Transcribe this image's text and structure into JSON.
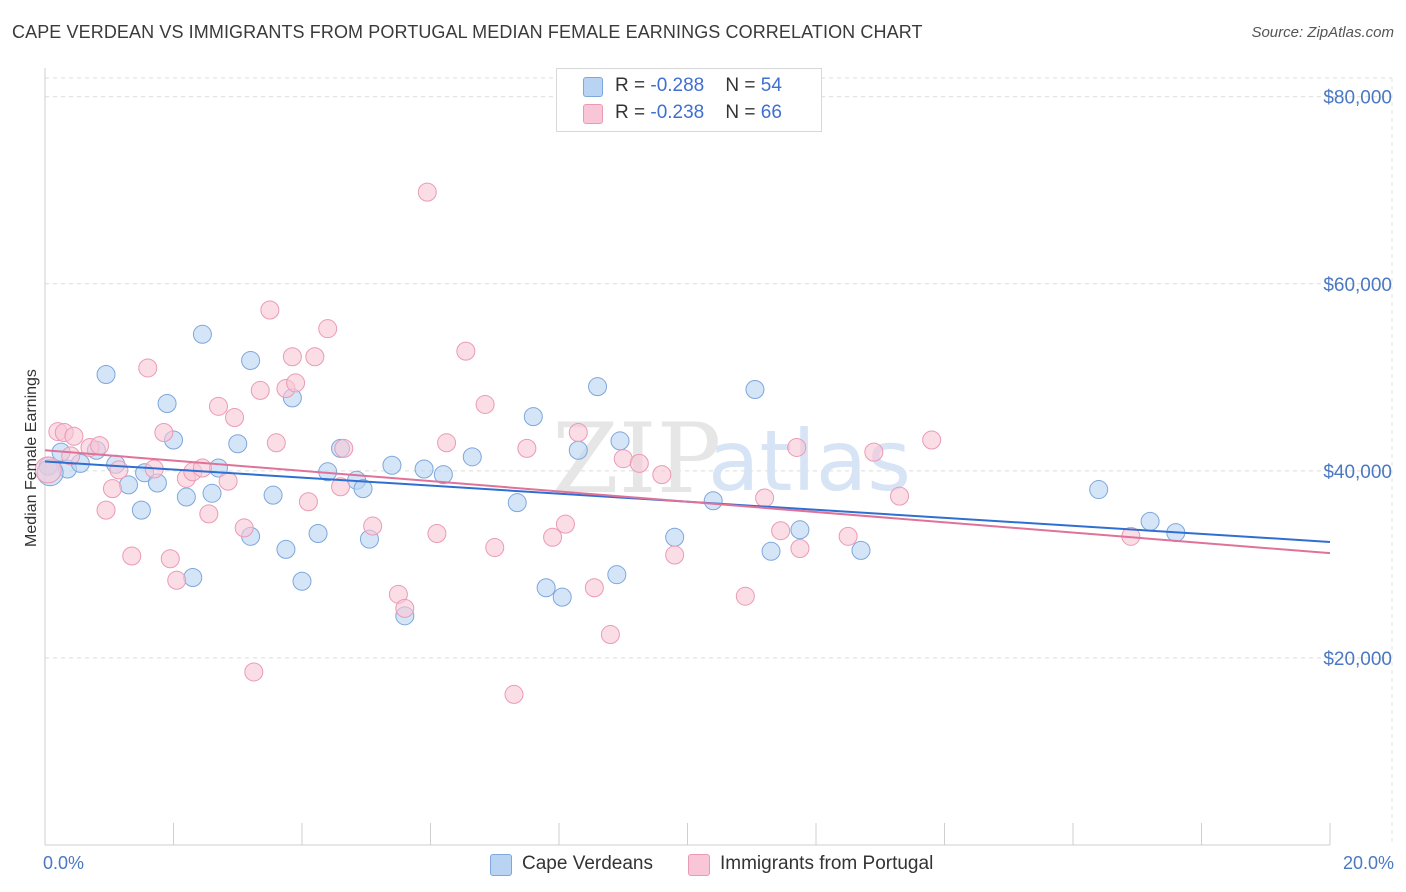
{
  "title": "CAPE VERDEAN VS IMMIGRANTS FROM PORTUGAL MEDIAN FEMALE EARNINGS CORRELATION CHART",
  "source": "Source: ZipAtlas.com",
  "watermark": {
    "zip": "ZIP",
    "atlas": "atlas"
  },
  "legend": [
    {
      "r_label": "R = ",
      "r_value": "-0.288",
      "n_label": "N = ",
      "n_value": "54"
    },
    {
      "r_label": "R = ",
      "r_value": "-0.238",
      "n_label": "N = ",
      "n_value": "66"
    }
  ],
  "colors": {
    "blue_fill": "#b9d3f3",
    "blue_stroke": "#7ea7dc",
    "blue_line": "#2f6fd1",
    "pink_fill": "#f8c6d6",
    "pink_stroke": "#eb9ab5",
    "pink_line": "#e0729a",
    "grid": "#dcdcdc",
    "axis_text": "#4a78c2"
  },
  "chart_data": {
    "type": "scatter",
    "title": "CAPE VERDEAN VS IMMIGRANTS FROM PORTUGAL MEDIAN FEMALE EARNINGS CORRELATION CHART",
    "ylabel": "Median Female Earnings",
    "xlabel": "",
    "xlim": [
      0,
      20
    ],
    "ylim": [
      0,
      82000
    ],
    "x_tick_labels": [
      "0.0%",
      "20.0%"
    ],
    "y_ticks": [
      {
        "value": 20000,
        "label": "$20,000"
      },
      {
        "value": 40000,
        "label": "$40,000"
      },
      {
        "value": 60000,
        "label": "$60,000"
      },
      {
        "value": 80000,
        "label": "$80,000"
      }
    ],
    "grid": true,
    "legend_position": "top-center",
    "series": [
      {
        "name": "Cape Verdeans",
        "trend": {
          "x": [
            0,
            20
          ],
          "y": [
            41000,
            32400
          ]
        },
        "points": [
          [
            0.05,
            40500
          ],
          [
            0.25,
            42000
          ],
          [
            0.35,
            40200
          ],
          [
            0.55,
            40800
          ],
          [
            0.8,
            42200
          ],
          [
            0.95,
            50300
          ],
          [
            1.1,
            40700
          ],
          [
            1.3,
            38500
          ],
          [
            1.5,
            35800
          ],
          [
            1.55,
            39800
          ],
          [
            1.75,
            38700
          ],
          [
            1.9,
            47200
          ],
          [
            2.0,
            43300
          ],
          [
            2.2,
            37200
          ],
          [
            2.3,
            28600
          ],
          [
            2.45,
            54600
          ],
          [
            2.6,
            37600
          ],
          [
            2.7,
            40300
          ],
          [
            3.0,
            42900
          ],
          [
            3.2,
            33000
          ],
          [
            3.2,
            51800
          ],
          [
            3.55,
            37400
          ],
          [
            3.75,
            31600
          ],
          [
            3.85,
            47800
          ],
          [
            4.0,
            28200
          ],
          [
            4.25,
            33300
          ],
          [
            4.4,
            39900
          ],
          [
            4.6,
            42400
          ],
          [
            4.85,
            39000
          ],
          [
            4.95,
            38100
          ],
          [
            5.05,
            32700
          ],
          [
            5.4,
            40600
          ],
          [
            5.6,
            24500
          ],
          [
            5.9,
            40200
          ],
          [
            6.2,
            39600
          ],
          [
            6.65,
            41500
          ],
          [
            7.35,
            36600
          ],
          [
            7.6,
            45800
          ],
          [
            7.8,
            27500
          ],
          [
            8.05,
            26500
          ],
          [
            8.3,
            42200
          ],
          [
            8.6,
            49000
          ],
          [
            8.9,
            28900
          ],
          [
            8.95,
            43200
          ],
          [
            9.8,
            32900
          ],
          [
            10.4,
            36800
          ],
          [
            11.05,
            48700
          ],
          [
            11.3,
            31400
          ],
          [
            11.75,
            33700
          ],
          [
            12.7,
            31500
          ],
          [
            16.4,
            38000
          ],
          [
            17.2,
            34600
          ],
          [
            17.6,
            33400
          ],
          [
            0.08,
            39800
          ]
        ]
      },
      {
        "name": "Immigrants from Portugal",
        "trend": {
          "x": [
            0,
            20
          ],
          "y": [
            42200,
            31200
          ]
        },
        "points": [
          [
            0.05,
            40100
          ],
          [
            0.2,
            44200
          ],
          [
            0.3,
            44100
          ],
          [
            0.4,
            41600
          ],
          [
            0.45,
            43700
          ],
          [
            0.7,
            42500
          ],
          [
            0.85,
            42700
          ],
          [
            0.95,
            35800
          ],
          [
            1.05,
            38100
          ],
          [
            1.15,
            40100
          ],
          [
            1.35,
            30900
          ],
          [
            1.6,
            51000
          ],
          [
            1.7,
            40200
          ],
          [
            1.85,
            44100
          ],
          [
            1.95,
            30600
          ],
          [
            2.05,
            28300
          ],
          [
            2.2,
            39200
          ],
          [
            2.3,
            39900
          ],
          [
            2.45,
            40300
          ],
          [
            2.55,
            35400
          ],
          [
            2.7,
            46900
          ],
          [
            2.85,
            38900
          ],
          [
            2.95,
            45700
          ],
          [
            3.1,
            33900
          ],
          [
            3.25,
            18500
          ],
          [
            3.35,
            48600
          ],
          [
            3.5,
            57200
          ],
          [
            3.6,
            43000
          ],
          [
            3.75,
            48800
          ],
          [
            3.85,
            52200
          ],
          [
            3.9,
            49400
          ],
          [
            4.1,
            36700
          ],
          [
            4.2,
            52200
          ],
          [
            4.4,
            55200
          ],
          [
            4.6,
            38300
          ],
          [
            4.65,
            42400
          ],
          [
            5.1,
            34100
          ],
          [
            5.5,
            26800
          ],
          [
            5.6,
            25300
          ],
          [
            5.95,
            69800
          ],
          [
            6.1,
            33300
          ],
          [
            6.25,
            43000
          ],
          [
            6.55,
            52800
          ],
          [
            6.85,
            47100
          ],
          [
            7.0,
            31800
          ],
          [
            7.3,
            16100
          ],
          [
            7.5,
            42400
          ],
          [
            7.9,
            32900
          ],
          [
            8.1,
            34300
          ],
          [
            8.3,
            44100
          ],
          [
            8.55,
            27500
          ],
          [
            8.8,
            22500
          ],
          [
            9.0,
            41300
          ],
          [
            9.25,
            40800
          ],
          [
            9.6,
            39600
          ],
          [
            9.8,
            31000
          ],
          [
            10.9,
            26600
          ],
          [
            11.2,
            37100
          ],
          [
            11.45,
            33600
          ],
          [
            11.7,
            42500
          ],
          [
            11.75,
            31700
          ],
          [
            12.5,
            33000
          ],
          [
            12.9,
            42000
          ],
          [
            13.3,
            37300
          ],
          [
            13.8,
            43300
          ],
          [
            16.9,
            33000
          ]
        ]
      }
    ]
  }
}
